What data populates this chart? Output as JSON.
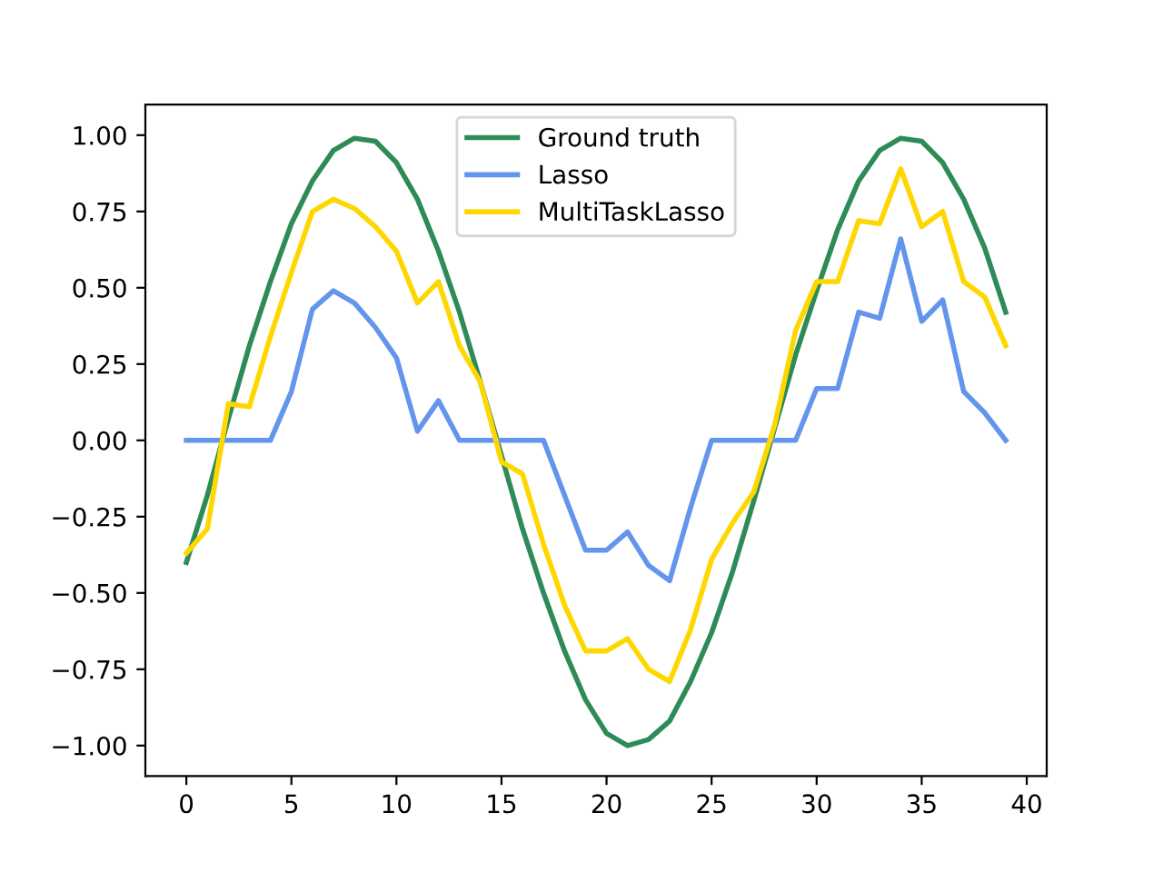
{
  "chart_data": {
    "type": "line",
    "x": [
      0,
      1,
      2,
      3,
      4,
      5,
      6,
      7,
      8,
      9,
      10,
      11,
      12,
      13,
      14,
      15,
      16,
      17,
      18,
      19,
      20,
      21,
      22,
      23,
      24,
      25,
      26,
      27,
      28,
      29,
      30,
      31,
      32,
      33,
      34,
      35,
      36,
      37,
      38,
      39
    ],
    "series": [
      {
        "name": "Ground truth",
        "color": "#2e8b57",
        "values": [
          -0.4,
          -0.18,
          0.07,
          0.31,
          0.52,
          0.71,
          0.85,
          0.95,
          0.99,
          0.98,
          0.91,
          0.79,
          0.62,
          0.42,
          0.19,
          -0.05,
          -0.29,
          -0.5,
          -0.69,
          -0.85,
          -0.96,
          -1.0,
          -0.98,
          -0.92,
          -0.79,
          -0.63,
          -0.43,
          -0.2,
          0.04,
          0.28,
          0.49,
          0.69,
          0.85,
          0.95,
          0.99,
          0.98,
          0.91,
          0.79,
          0.63,
          0.42
        ]
      },
      {
        "name": "Lasso",
        "color": "#6495ed",
        "values": [
          0,
          0,
          0,
          0,
          0,
          0.16,
          0.43,
          0.49,
          0.45,
          0.37,
          0.27,
          0.03,
          0.13,
          0,
          0,
          0,
          0,
          0,
          -0.18,
          -0.36,
          -0.36,
          -0.3,
          -0.41,
          -0.46,
          -0.22,
          0,
          0,
          0,
          0,
          0,
          0.17,
          0.17,
          0.42,
          0.4,
          0.66,
          0.39,
          0.46,
          0.16,
          0.09,
          0
        ]
      },
      {
        "name": "MultiTaskLasso",
        "color": "#ffd700",
        "values": [
          -0.37,
          -0.29,
          0.12,
          0.11,
          0.34,
          0.55,
          0.75,
          0.79,
          0.76,
          0.7,
          0.62,
          0.45,
          0.52,
          0.31,
          0.19,
          -0.07,
          -0.11,
          -0.34,
          -0.54,
          -0.69,
          -0.69,
          -0.65,
          -0.75,
          -0.79,
          -0.62,
          -0.39,
          -0.27,
          -0.17,
          0.05,
          0.36,
          0.52,
          0.52,
          0.72,
          0.71,
          0.89,
          0.7,
          0.75,
          0.52,
          0.47,
          0.31
        ]
      }
    ],
    "xlim": [
      -1.95,
      40.95
    ],
    "xticks": [
      0,
      5,
      10,
      15,
      20,
      25,
      30,
      35,
      40
    ],
    "ylim": [
      -1.1,
      1.1
    ],
    "yticks": [
      {
        "value": -1,
        "label": "−1.00"
      },
      {
        "value": -0.75,
        "label": "−0.75"
      },
      {
        "value": -0.5,
        "label": "−0.50"
      },
      {
        "value": -0.25,
        "label": "−0.25"
      },
      {
        "value": 0,
        "label": "0.00"
      },
      {
        "value": 0.25,
        "label": "0.25"
      },
      {
        "value": 0.5,
        "label": "0.50"
      },
      {
        "value": 0.75,
        "label": "0.75"
      },
      {
        "value": 1,
        "label": "1.00"
      }
    ],
    "legend": "top",
    "grid": false,
    "line_style": "solid"
  }
}
